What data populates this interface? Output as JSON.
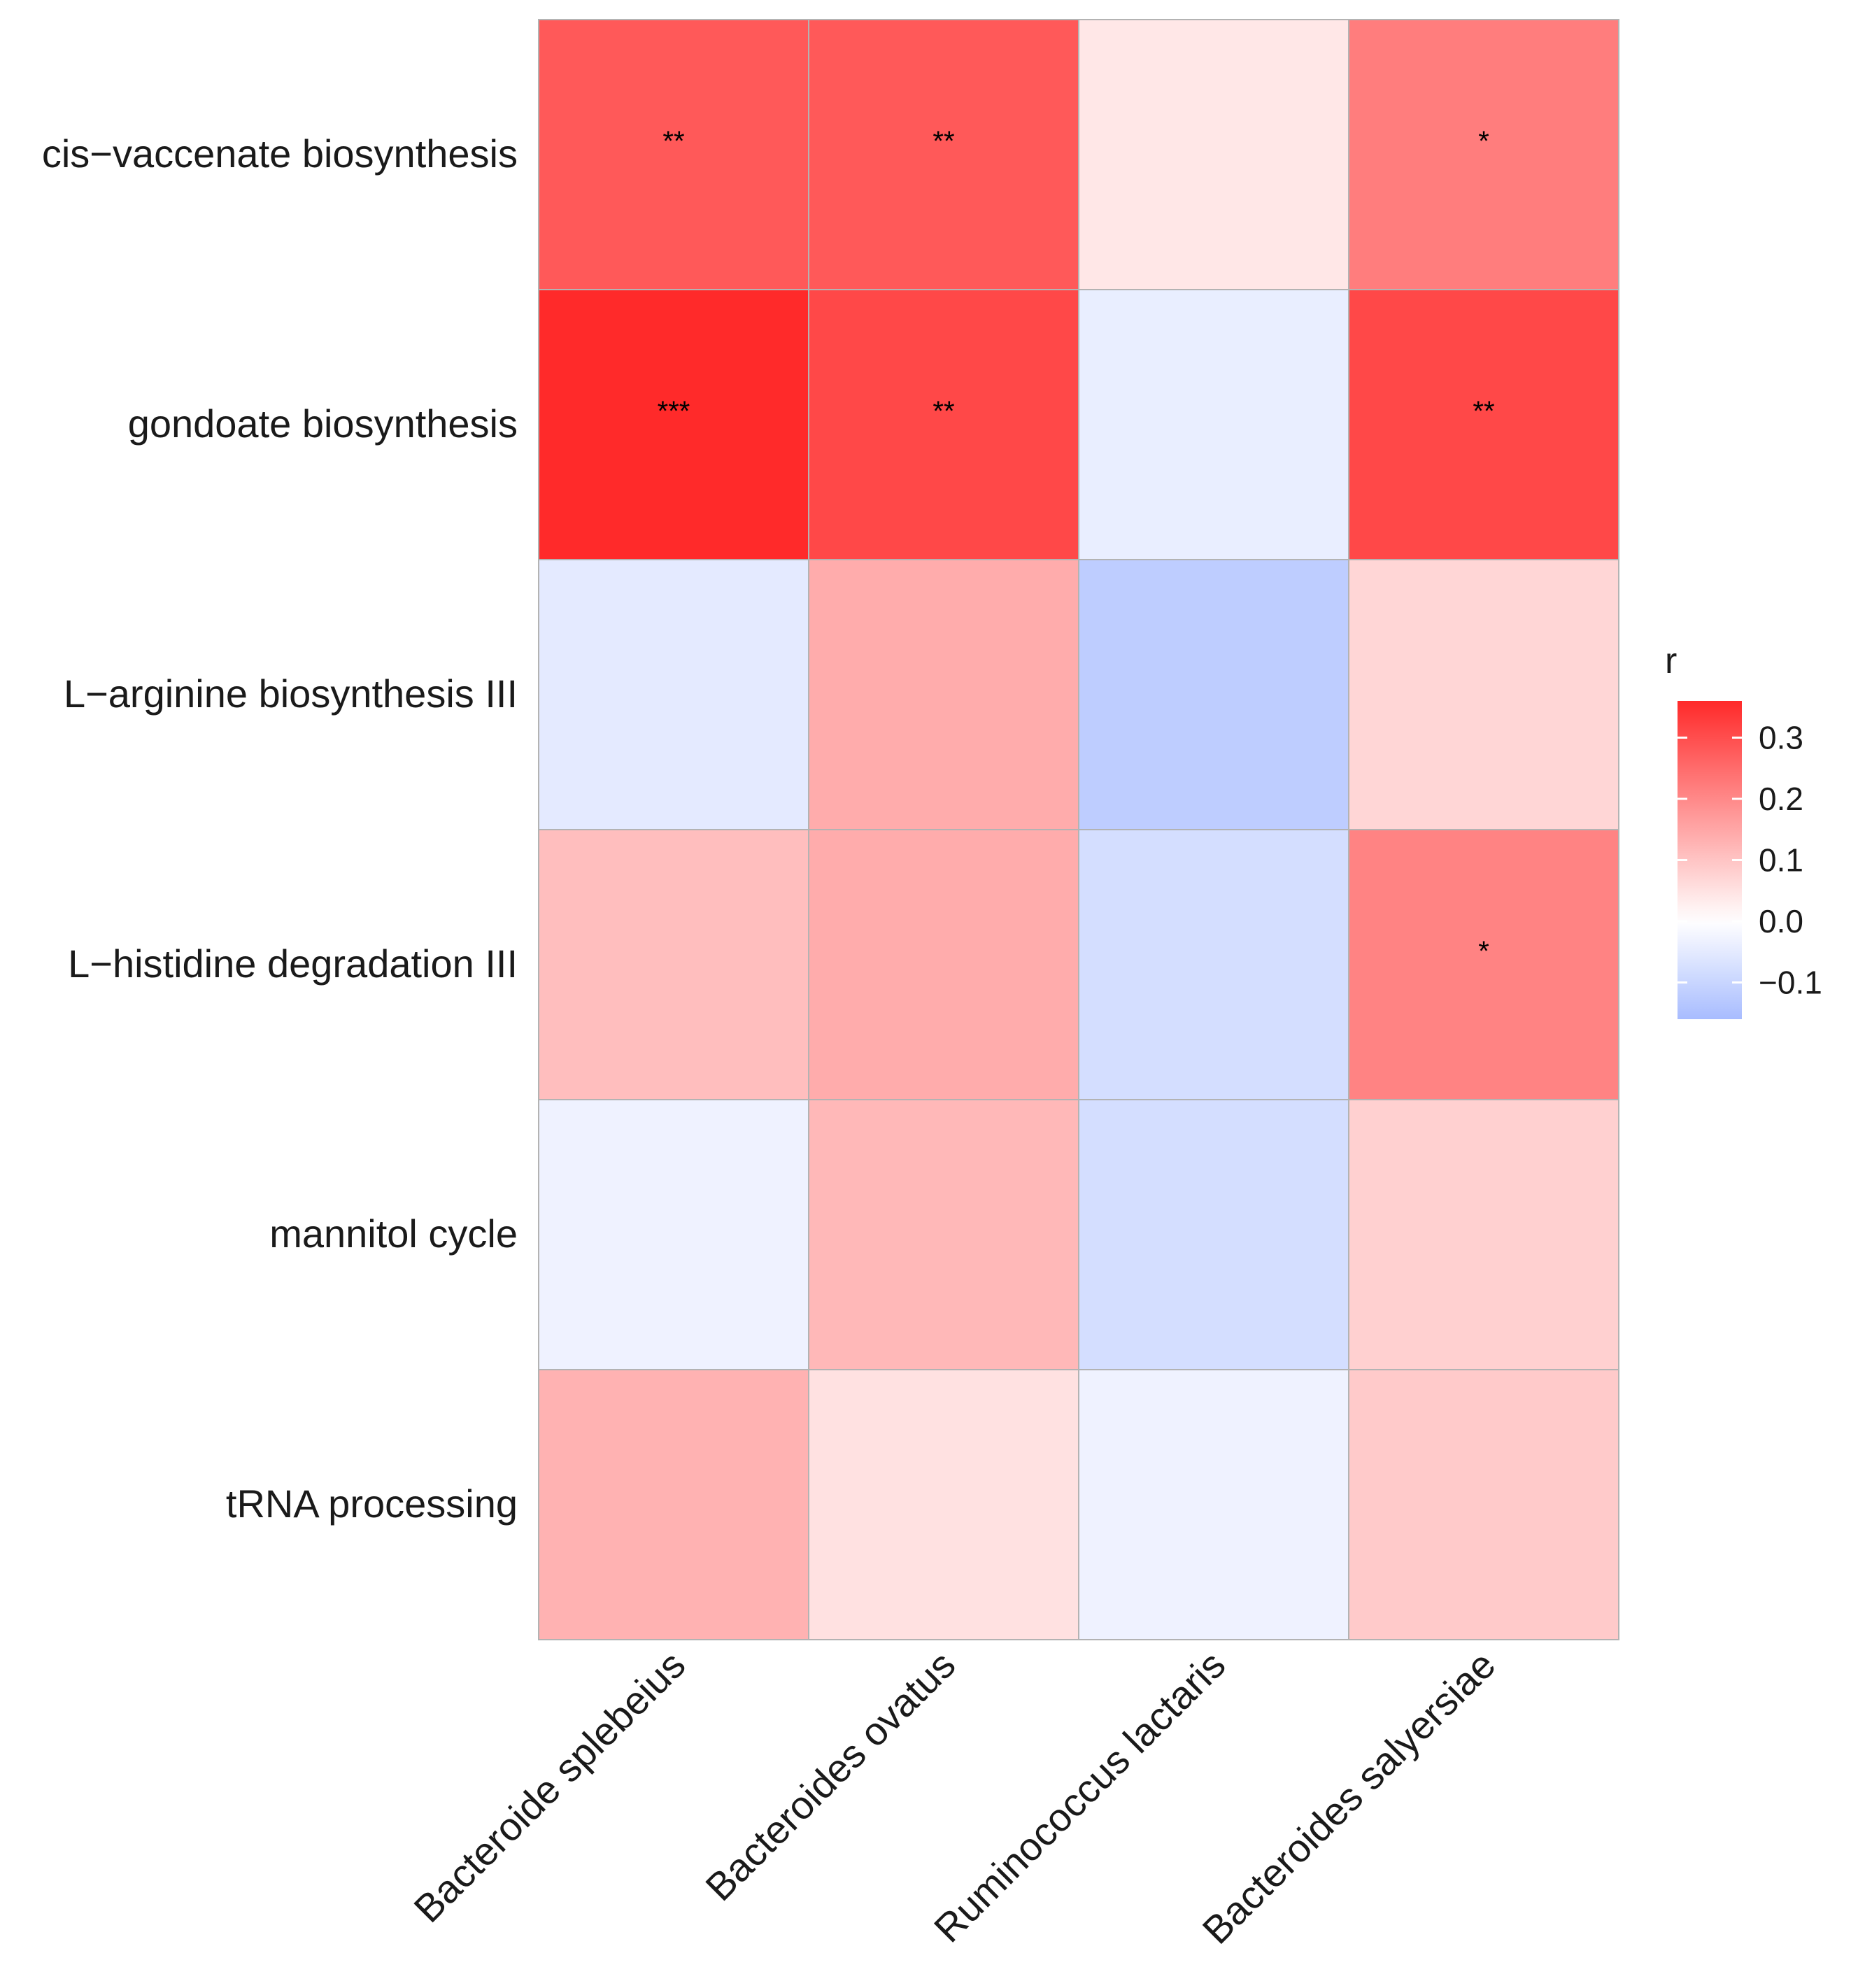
{
  "chart_data": {
    "type": "heatmap",
    "title": "",
    "rows": [
      "cis−vaccenate biosynthesis",
      "gondoate biosynthesis",
      "L−arginine biosynthesis III",
      "L−histidine degradation III",
      "mannitol cycle",
      "tRNA processing"
    ],
    "columns": [
      "Bacteroide splebeius",
      "Bacteroides ovatus",
      "Ruminococcus lactaris",
      "Bacteroides salyersiae"
    ],
    "values": [
      [
        0.28,
        0.28,
        0.04,
        0.22
      ],
      [
        0.36,
        0.31,
        -0.04,
        0.31
      ],
      [
        -0.05,
        0.14,
        -0.12,
        0.07
      ],
      [
        0.11,
        0.14,
        -0.08,
        0.21
      ],
      [
        -0.03,
        0.12,
        -0.08,
        0.08
      ],
      [
        0.13,
        0.05,
        -0.03,
        0.09
      ]
    ],
    "significance": [
      [
        "**",
        "**",
        "",
        "*"
      ],
      [
        "***",
        "**",
        "",
        "**"
      ],
      [
        "",
        "",
        "",
        ""
      ],
      [
        "",
        "",
        "",
        "*"
      ],
      [
        "",
        "",
        "",
        ""
      ],
      [
        "",
        "",
        "",
        ""
      ]
    ],
    "legend": {
      "title": "r",
      "ticks": [
        0.3,
        0.2,
        0.1,
        0.0,
        -0.1
      ],
      "tick_labels": [
        "0.3",
        "0.2",
        "0.1",
        "0.0",
        "−0.1"
      ],
      "range": [
        -0.16,
        0.36
      ],
      "placement": "right"
    },
    "colors": {
      "high": "#FF2A2A",
      "mid": "#FFFFFF",
      "low": "#A8BCFF"
    }
  }
}
